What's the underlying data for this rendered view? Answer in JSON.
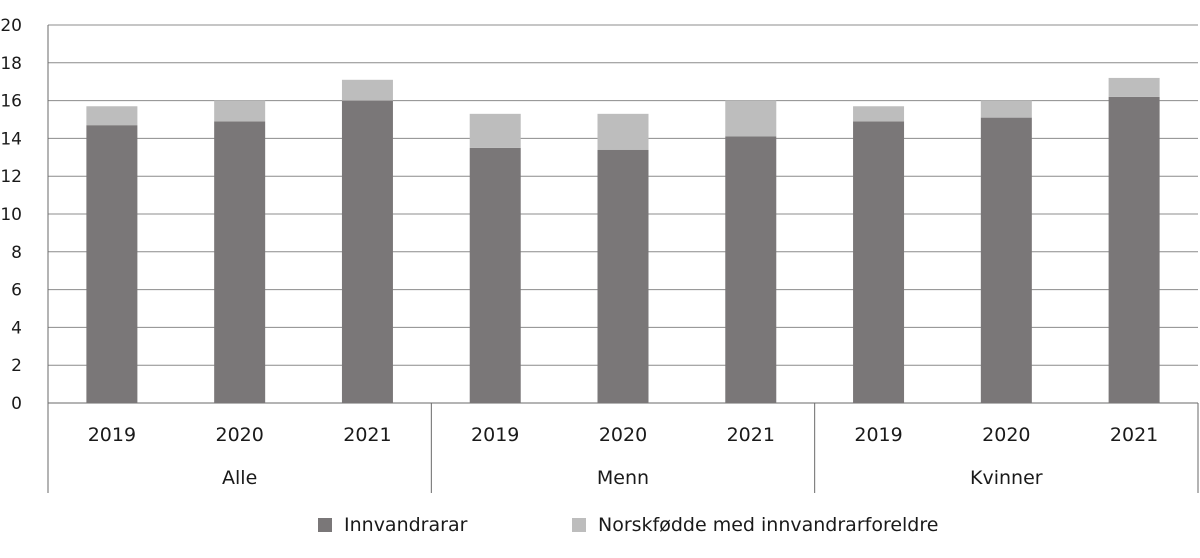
{
  "chart_data": {
    "type": "bar",
    "stacked": true,
    "grid": true,
    "legend_position": "bottom",
    "ylim": [
      0,
      20
    ],
    "y_ticks": [
      "0",
      "2",
      "4",
      "6",
      "8",
      "10",
      "12",
      "14",
      "16",
      "18",
      "20"
    ],
    "groups": [
      {
        "label": "Alle",
        "categories": [
          "2019",
          "2020",
          "2021"
        ]
      },
      {
        "label": "Menn",
        "categories": [
          "2019",
          "2020",
          "2021"
        ]
      },
      {
        "label": "Kvinner",
        "categories": [
          "2019",
          "2020",
          "2021"
        ]
      }
    ],
    "series": [
      {
        "name": "Innvandrarar",
        "color": "#7a7778",
        "values": [
          14.7,
          14.9,
          16.0,
          13.5,
          13.4,
          14.1,
          14.9,
          15.1,
          16.2
        ]
      },
      {
        "name": "Norskfødde med innvandrarforeldre",
        "color": "#bdbdbd",
        "values": [
          1.0,
          1.1,
          1.1,
          1.8,
          1.9,
          1.9,
          0.8,
          0.9,
          1.0
        ]
      }
    ]
  }
}
